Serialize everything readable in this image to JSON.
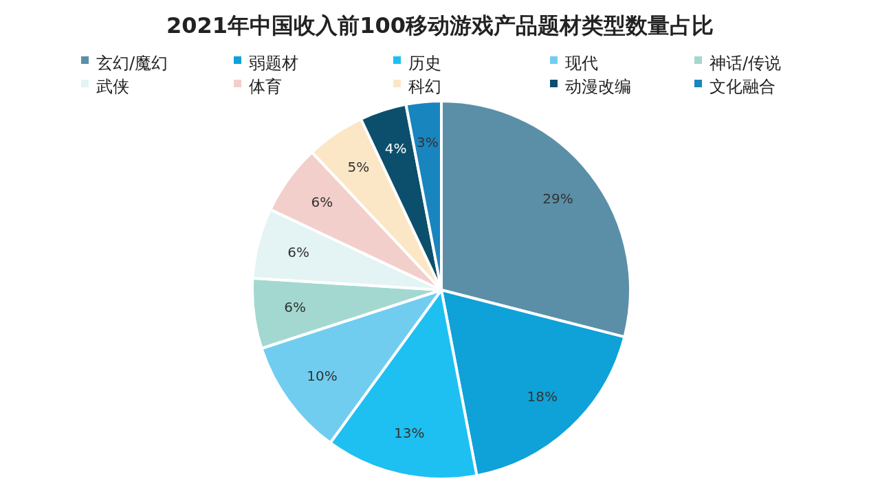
{
  "chart_data": {
    "type": "pie",
    "title": "2021年中国收入前100移动游戏产品题材类型数量占比",
    "categories": [
      "玄幻/魔幻",
      "弱题材",
      "历史",
      "现代",
      "神话/传说",
      "武侠",
      "体育",
      "科幻",
      "动漫改编",
      "文化融合"
    ],
    "values": [
      29,
      18,
      13,
      10,
      6,
      6,
      6,
      5,
      4,
      3
    ],
    "colors": [
      "#5b8fa8",
      "#0ea2d8",
      "#1ec0f2",
      "#70cdf0",
      "#a3d8d0",
      "#e4f3f4",
      "#f3cfcb",
      "#fbe7c6",
      "#0c4f6c",
      "#1985bf"
    ],
    "value_labels": [
      "29%",
      "18%",
      "13%",
      "10%",
      "6%",
      "6%",
      "6%",
      "5%",
      "4%",
      "3%"
    ],
    "legend": "top"
  }
}
